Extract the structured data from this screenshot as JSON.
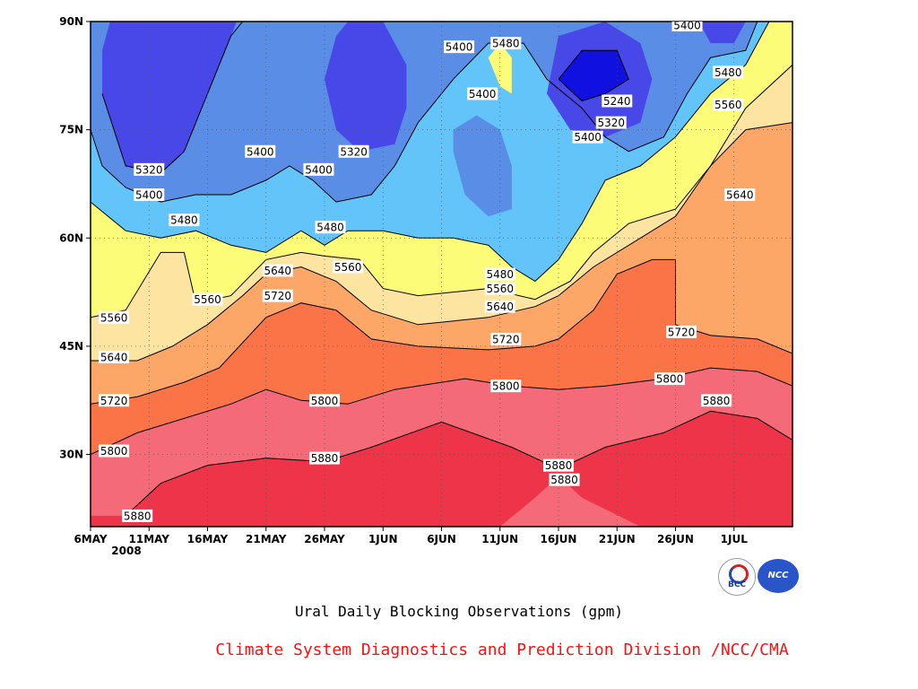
{
  "chart_data": {
    "type": "contour",
    "title": "Ural Daily Blocking Observations (gpm)",
    "credit": "Climate System Diagnostics and Prediction Division /NCC/CMA",
    "x_ticks": [
      "6MAY",
      "11MAY",
      "16MAY",
      "21MAY",
      "26MAY",
      "1JUN",
      "6JUN",
      "11JUN",
      "16JUN",
      "21JUN",
      "26JUN",
      "1JUL"
    ],
    "x_year_label": "2008",
    "x_range_days": [
      0,
      60
    ],
    "y_ticks": [
      "30N",
      "45N",
      "60N",
      "75N",
      "90N"
    ],
    "y_tick_values": [
      30,
      45,
      60,
      75,
      90
    ],
    "ylim": [
      20,
      90
    ],
    "grid": true,
    "contour_levels": [
      5240,
      5320,
      5400,
      5480,
      5560,
      5640,
      5720,
      5800,
      5880
    ],
    "contours": [
      {
        "value": 5880,
        "points": [
          [
            3,
            21.5
          ],
          [
            6,
            26
          ],
          [
            10,
            28.5
          ],
          [
            15,
            29.5
          ],
          [
            20,
            29
          ],
          [
            24,
            31
          ],
          [
            30,
            34.5
          ],
          [
            36,
            31
          ],
          [
            40,
            28
          ],
          [
            44,
            31
          ],
          [
            49,
            33
          ],
          [
            53,
            36
          ],
          [
            57,
            35
          ],
          [
            60,
            32
          ]
        ]
      },
      {
        "value": 5800,
        "points": [
          [
            0,
            30
          ],
          [
            4,
            33
          ],
          [
            8,
            35
          ],
          [
            12,
            37
          ],
          [
            15,
            39
          ],
          [
            18,
            37.5
          ],
          [
            22,
            37
          ],
          [
            26,
            39
          ],
          [
            32,
            40.5
          ],
          [
            36,
            39.5
          ],
          [
            40,
            39
          ],
          [
            44,
            39.5
          ],
          [
            49,
            40.5
          ],
          [
            53,
            42
          ],
          [
            57,
            41.5
          ],
          [
            60,
            39.5
          ]
        ]
      },
      {
        "value": 5720,
        "points": [
          [
            0,
            37
          ],
          [
            4,
            38
          ],
          [
            8,
            40
          ],
          [
            11,
            42
          ],
          [
            15,
            49
          ],
          [
            18,
            51
          ],
          [
            21,
            50
          ],
          [
            24,
            46
          ],
          [
            28,
            45
          ],
          [
            34,
            44.5
          ],
          [
            38,
            45
          ],
          [
            40,
            46
          ],
          [
            43,
            50
          ],
          [
            45,
            55
          ],
          [
            48,
            57
          ],
          [
            50,
            57
          ],
          [
            50,
            48
          ],
          [
            53,
            46.5
          ],
          [
            57,
            46
          ],
          [
            60,
            44
          ]
        ]
      },
      {
        "value": 5640,
        "points": [
          [
            0,
            43
          ],
          [
            4,
            43
          ],
          [
            7,
            45
          ],
          [
            10,
            48
          ],
          [
            13,
            52
          ],
          [
            15,
            55
          ],
          [
            18,
            56
          ],
          [
            21,
            54
          ],
          [
            24,
            50
          ],
          [
            28,
            48
          ],
          [
            34,
            49
          ],
          [
            38,
            50.5
          ],
          [
            40,
            52
          ],
          [
            43,
            56
          ],
          [
            47,
            60
          ],
          [
            50,
            63
          ],
          [
            53,
            70
          ],
          [
            56,
            75
          ],
          [
            60,
            76
          ]
        ]
      },
      {
        "value": 5560,
        "points": [
          [
            0,
            49
          ],
          [
            3,
            50
          ],
          [
            6,
            58
          ],
          [
            8,
            58
          ],
          [
            9,
            51
          ],
          [
            12,
            52
          ],
          [
            15,
            57
          ],
          [
            18,
            58
          ],
          [
            20,
            57.5
          ],
          [
            23,
            57
          ],
          [
            25,
            53
          ],
          [
            28,
            52
          ],
          [
            34,
            53
          ],
          [
            38,
            51.5
          ],
          [
            41,
            54
          ],
          [
            43,
            58
          ],
          [
            46,
            62
          ],
          [
            50,
            64
          ],
          [
            53,
            70
          ],
          [
            56,
            78
          ],
          [
            60,
            84
          ]
        ]
      },
      {
        "value": 5480,
        "points": [
          [
            0,
            65
          ],
          [
            3,
            61
          ],
          [
            6,
            60
          ],
          [
            9,
            61
          ],
          [
            12,
            59
          ],
          [
            15,
            58
          ],
          [
            18,
            61
          ],
          [
            20,
            59
          ],
          [
            22,
            61
          ],
          [
            25,
            61
          ],
          [
            28,
            60
          ],
          [
            31,
            60
          ],
          [
            34,
            59
          ],
          [
            36,
            56
          ],
          [
            38,
            54
          ],
          [
            40,
            57
          ],
          [
            42,
            62
          ],
          [
            44,
            68
          ],
          [
            47,
            70
          ],
          [
            50,
            74
          ],
          [
            53,
            80
          ],
          [
            56,
            84
          ],
          [
            58,
            90
          ]
        ]
      },
      {
        "value": 5400,
        "points": [
          [
            0,
            75
          ],
          [
            1,
            70
          ],
          [
            3,
            67
          ],
          [
            6,
            65
          ],
          [
            9,
            66
          ],
          [
            12,
            66
          ],
          [
            15,
            68
          ],
          [
            17,
            70
          ],
          [
            19,
            68
          ],
          [
            21,
            65
          ],
          [
            24,
            66
          ],
          [
            26,
            70
          ],
          [
            28,
            76
          ],
          [
            31,
            82
          ],
          [
            34,
            87
          ],
          [
            37,
            87
          ],
          [
            39,
            82
          ],
          [
            42,
            78
          ],
          [
            44,
            74
          ],
          [
            46,
            72
          ],
          [
            49,
            74
          ],
          [
            51,
            80
          ],
          [
            53,
            85
          ],
          [
            56,
            86
          ],
          [
            57,
            90
          ]
        ]
      },
      {
        "value": 5320,
        "points": [
          [
            1,
            80
          ],
          [
            3,
            70
          ],
          [
            6,
            69
          ],
          [
            8,
            72
          ],
          [
            10,
            80
          ],
          [
            12,
            88
          ],
          [
            13,
            90
          ]
        ]
      },
      {
        "value": 5240,
        "points": [
          [
            40,
            82
          ],
          [
            42,
            79
          ],
          [
            44,
            80
          ],
          [
            46,
            82
          ],
          [
            45,
            86
          ],
          [
            42,
            86
          ],
          [
            40,
            82
          ]
        ]
      }
    ],
    "contour_labels": [
      {
        "text": "5880",
        "x": 4,
        "y": 21.5
      },
      {
        "text": "5880",
        "x": 20,
        "y": 29.5
      },
      {
        "text": "5880",
        "x": 40,
        "y": 28.5
      },
      {
        "text": "5880",
        "x": 40.5,
        "y": 26.5
      },
      {
        "text": "5880",
        "x": 53.5,
        "y": 37.5
      },
      {
        "text": "5800",
        "x": 2,
        "y": 30.5
      },
      {
        "text": "5800",
        "x": 20,
        "y": 37.5
      },
      {
        "text": "5800",
        "x": 35.5,
        "y": 39.5
      },
      {
        "text": "5800",
        "x": 49.5,
        "y": 40.5
      },
      {
        "text": "5720",
        "x": 2,
        "y": 37.5
      },
      {
        "text": "5720",
        "x": 16,
        "y": 52
      },
      {
        "text": "5720",
        "x": 35.5,
        "y": 46
      },
      {
        "text": "5720",
        "x": 50.5,
        "y": 47
      },
      {
        "text": "5640",
        "x": 2,
        "y": 43.5
      },
      {
        "text": "5640",
        "x": 16,
        "y": 55.5
      },
      {
        "text": "5640",
        "x": 35,
        "y": 50.5
      },
      {
        "text": "5640",
        "x": 55.5,
        "y": 66
      },
      {
        "text": "5560",
        "x": 2,
        "y": 49
      },
      {
        "text": "5560",
        "x": 10,
        "y": 51.5
      },
      {
        "text": "5560",
        "x": 22,
        "y": 56
      },
      {
        "text": "5560",
        "x": 35,
        "y": 53
      },
      {
        "text": "5560",
        "x": 54.5,
        "y": 78.5
      },
      {
        "text": "5480",
        "x": 8,
        "y": 62.5
      },
      {
        "text": "5480",
        "x": 20.5,
        "y": 61.5
      },
      {
        "text": "5480",
        "x": 35,
        "y": 55
      },
      {
        "text": "5480",
        "x": 35.5,
        "y": 87
      },
      {
        "text": "5480",
        "x": 54.5,
        "y": 83
      },
      {
        "text": "5400",
        "x": 5,
        "y": 66
      },
      {
        "text": "5400",
        "x": 14.5,
        "y": 72
      },
      {
        "text": "5400",
        "x": 19.5,
        "y": 69.5
      },
      {
        "text": "5400",
        "x": 31.5,
        "y": 86.5
      },
      {
        "text": "5400",
        "x": 33.5,
        "y": 80
      },
      {
        "text": "5400",
        "x": 42.5,
        "y": 74
      },
      {
        "text": "5400",
        "x": 51,
        "y": 89.5
      },
      {
        "text": "5320",
        "x": 5,
        "y": 69.5
      },
      {
        "text": "5320",
        "x": 22.5,
        "y": 72
      },
      {
        "text": "5320",
        "x": 40.5,
        "y": 95.5
      },
      {
        "text": "5320",
        "x": 44.5,
        "y": 76
      },
      {
        "text": "5240",
        "x": 45,
        "y": 79
      }
    ],
    "color_bands": [
      {
        "level": "<5240",
        "color": "#1010e0"
      },
      {
        "level": "5240-5320",
        "color": "#4848e8"
      },
      {
        "level": "5320-5400",
        "color": "#5a8ee6"
      },
      {
        "level": "5400-5480",
        "color": "#62c4f8"
      },
      {
        "level": "5480-5560",
        "color": "#fcfc78"
      },
      {
        "level": "5560-5640",
        "color": "#fde4a0"
      },
      {
        "level": "5640-5720",
        "color": "#fca668"
      },
      {
        "level": "5720-5800",
        "color": "#fa7448"
      },
      {
        "level": "5800-5880",
        "color": "#f46a78"
      },
      {
        "level": ">5880",
        "color": "#ee3448"
      }
    ]
  },
  "logos": {
    "bcc": "BCC",
    "ncc": "NCC"
  }
}
